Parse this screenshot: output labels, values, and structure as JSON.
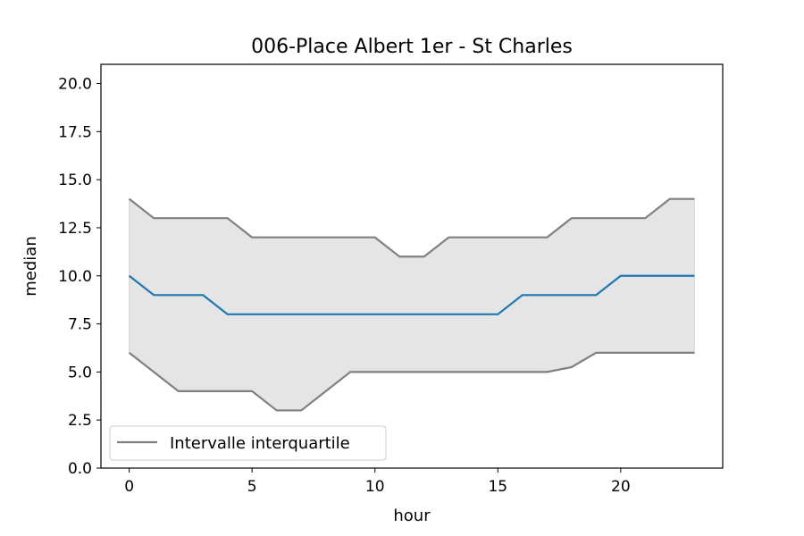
{
  "chart_data": {
    "type": "line",
    "title": "006-Place Albert 1er - St Charles",
    "xlabel": "hour",
    "ylabel": "median",
    "xlim": [
      -1.15,
      24.15
    ],
    "ylim": [
      0,
      21
    ],
    "xticks": [
      0,
      5,
      10,
      15,
      20
    ],
    "yticks": [
      0.0,
      2.5,
      5.0,
      7.5,
      10.0,
      12.5,
      15.0,
      17.5,
      20.0
    ],
    "xtick_labels": [
      "0",
      "5",
      "10",
      "15",
      "20"
    ],
    "ytick_labels": [
      "0.0",
      "2.5",
      "5.0",
      "7.5",
      "10.0",
      "12.5",
      "15.0",
      "17.5",
      "20.0"
    ],
    "grid": false,
    "legend_position": "lower-left",
    "legend_entries": [
      "Intervalle interquartile"
    ],
    "x": [
      0,
      1,
      2,
      3,
      4,
      5,
      6,
      7,
      8,
      9,
      10,
      11,
      12,
      13,
      14,
      15,
      16,
      17,
      18,
      19,
      20,
      21,
      22,
      23
    ],
    "series": [
      {
        "role": "median",
        "color": "#1f77b4",
        "values": [
          10,
          9,
          9,
          9,
          8,
          8,
          8,
          8,
          8,
          8,
          8,
          8,
          8,
          8,
          8,
          8,
          9,
          9,
          9,
          9,
          10,
          10,
          10,
          10
        ]
      },
      {
        "role": "upper_quartile",
        "name": "Intervalle interquartile",
        "color": "#808080",
        "values": [
          14,
          13,
          13,
          13,
          13,
          12,
          12,
          12,
          12,
          12,
          12,
          11,
          11,
          12,
          12,
          12,
          12,
          12,
          13,
          13,
          13,
          13,
          14,
          14
        ]
      },
      {
        "role": "lower_quartile",
        "color": "#808080",
        "values": [
          6,
          5,
          4,
          4,
          4,
          4,
          3,
          3,
          4,
          5,
          5,
          5,
          5,
          5,
          5,
          5,
          5,
          5,
          5.25,
          6,
          6,
          6,
          6,
          6
        ]
      }
    ],
    "fill_color": "#e5e5e5"
  }
}
